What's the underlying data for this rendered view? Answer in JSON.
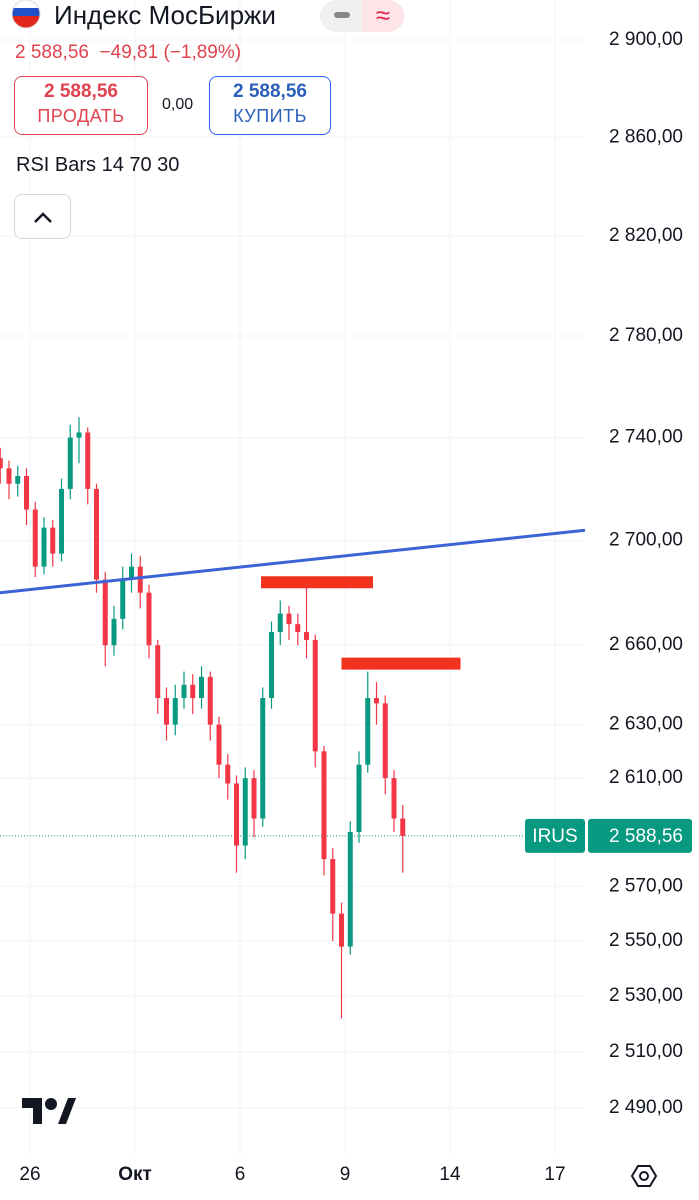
{
  "header": {
    "title": "Индекс МосБиржи",
    "price": "2 588,56",
    "change": "−49,81 (−1,89%)",
    "sell": {
      "price": "2 588,56",
      "label": "ПРОДАТЬ"
    },
    "spread": "0,00",
    "buy": {
      "price": "2 588,56",
      "label": "КУПИТЬ"
    },
    "indicator": "RSI Bars 14 70 30"
  },
  "chart_data": {
    "type": "candlestick",
    "log": true,
    "grid": true,
    "symbol": "IRUS",
    "up_color": "#089981",
    "down_color": "#f23645",
    "ylim": [
      2473.3,
      2916.6
    ],
    "yticks": [
      {
        "value": 2900,
        "label": "2 900,00"
      },
      {
        "value": 2860,
        "label": "2 860,00"
      },
      {
        "value": 2820,
        "label": "2 820,00"
      },
      {
        "value": 2780,
        "label": "2 780,00"
      },
      {
        "value": 2740,
        "label": "2 740,00"
      },
      {
        "value": 2700,
        "label": "2 700,00"
      },
      {
        "value": 2660,
        "label": "2 660,00"
      },
      {
        "value": 2630,
        "label": "2 630,00"
      },
      {
        "value": 2610,
        "label": "2 610,00"
      },
      {
        "value": 2570,
        "label": "2 570,00"
      },
      {
        "value": 2550,
        "label": "2 550,00"
      },
      {
        "value": 2530,
        "label": "2 530,00"
      },
      {
        "value": 2510,
        "label": "2 510,00"
      },
      {
        "value": 2490,
        "label": "2 490,00"
      }
    ],
    "xlim": [
      -0.857,
      15.857
    ],
    "xticks": [
      {
        "value": 0,
        "label": "26"
      },
      {
        "value": 3,
        "label": "Окт"
      },
      {
        "value": 6,
        "label": "6"
      },
      {
        "value": 9,
        "label": "9"
      },
      {
        "value": 12,
        "label": "14"
      },
      {
        "value": 15,
        "label": "17"
      }
    ],
    "candles": {
      "x": [
        -0.85,
        -0.6,
        -0.35,
        -0.1,
        0.15,
        0.4,
        0.65,
        0.9,
        1.15,
        1.4,
        1.65,
        1.9,
        2.15,
        2.4,
        2.65,
        2.9,
        3.15,
        3.4,
        3.65,
        3.9,
        4.15,
        4.4,
        4.65,
        4.9,
        5.15,
        5.4,
        5.65,
        5.9,
        6.15,
        6.4,
        6.65,
        6.9,
        7.15,
        7.4,
        7.65,
        7.9,
        8.15,
        8.4,
        8.65,
        8.9,
        9.15,
        9.4,
        9.65,
        9.9,
        10.15,
        10.4,
        10.65
      ],
      "open": [
        2732,
        2728,
        2722,
        2725,
        2712,
        2690,
        2705,
        2695,
        2720,
        2740,
        2742,
        2720,
        2685,
        2660,
        2670,
        2685,
        2690,
        2680,
        2660,
        2640,
        2630,
        2640,
        2645,
        2640,
        2648,
        2630,
        2615,
        2608,
        2585,
        2610,
        2595,
        2640,
        2665,
        2672,
        2668,
        2665,
        2662,
        2620,
        2580,
        2560,
        2548,
        2590,
        2615,
        2640,
        2638,
        2610,
        2595
      ],
      "high": [
        2736,
        2731,
        2729,
        2728,
        2715,
        2709,
        2708,
        2724,
        2745,
        2748,
        2744,
        2722,
        2688,
        2675,
        2690,
        2695,
        2694,
        2683,
        2662,
        2644,
        2645,
        2650,
        2649,
        2652,
        2650,
        2633,
        2619,
        2611,
        2614,
        2613,
        2644,
        2669,
        2677,
        2675,
        2672,
        2682,
        2664,
        2622,
        2584,
        2564,
        2594,
        2620,
        2650,
        2646,
        2641,
        2613,
        2600
      ],
      "low": [
        2722,
        2716,
        2717,
        2706,
        2686,
        2687,
        2690,
        2692,
        2716,
        2730,
        2714,
        2680,
        2652,
        2656,
        2666,
        2680,
        2674,
        2655,
        2634,
        2624,
        2626,
        2636,
        2634,
        2636,
        2624,
        2610,
        2602,
        2575,
        2580,
        2588,
        2592,
        2636,
        2660,
        2662,
        2660,
        2655,
        2614,
        2574,
        2550,
        2522,
        2545,
        2586,
        2612,
        2630,
        2604,
        2590,
        2575
      ],
      "close": [
        2728,
        2722,
        2725,
        2712,
        2690,
        2705,
        2695,
        2720,
        2740,
        2742,
        2720,
        2685,
        2660,
        2670,
        2685,
        2690,
        2680,
        2660,
        2640,
        2630,
        2640,
        2645,
        2640,
        2648,
        2630,
        2615,
        2608,
        2585,
        2610,
        2595,
        2640,
        2665,
        2672,
        2668,
        2665,
        2662,
        2620,
        2580,
        2560,
        2548,
        2590,
        2615,
        2640,
        2638,
        2610,
        2595,
        2588.56
      ]
    },
    "trendline": {
      "x": [
        -0.857,
        15.857
      ],
      "y": [
        2680,
        2704
      ],
      "color": "#3a63d6"
    },
    "levels": [
      {
        "x": [
          6.6,
          9.8
        ],
        "y": 2684,
        "color": "#f0321e"
      },
      {
        "x": [
          8.9,
          12.3
        ],
        "y": 2653,
        "color": "#f0321e"
      }
    ],
    "last_price": {
      "value": 2588.56,
      "label": "2 588,56"
    }
  }
}
